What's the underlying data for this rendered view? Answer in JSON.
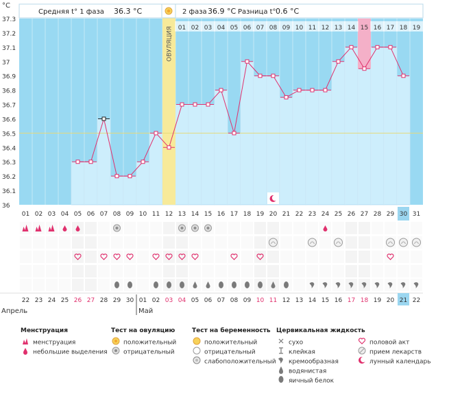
{
  "header": {
    "phase1_label": "Средняя t° 1 фаза",
    "phase1_value": "36.3 °C",
    "phase2_label": "2 фаза",
    "phase2_value": "36.9 °C",
    "diff_label": "Разница t°",
    "diff_value": "0.6 °C"
  },
  "ovulation_label": "ОВУЛЯЦИЯ",
  "colors": {
    "sky": "#99d9f2",
    "bar": "#cdeefc",
    "bar_edge": "#8cc8e8",
    "line": "#e0306d",
    "ovulation": "#f7ea9a",
    "ovulation_light": "#fbf4c8",
    "highlight": "#f4b0c8",
    "today": "#9bd6f0",
    "coverline": "#e6d97a"
  },
  "chart_data": {
    "type": "line",
    "ylabel": "°C",
    "ylim": [
      36,
      37.3
    ],
    "yticks": [
      "37.3",
      "37.2",
      "37.1",
      "37",
      "36.9",
      "36.8",
      "36.7",
      "36.6",
      "36.5",
      "36.4",
      "36.3",
      "36.2",
      "36.1",
      "36"
    ],
    "coverline": 36.5,
    "cycle_days": [
      "01",
      "02",
      "03",
      "04",
      "05",
      "06",
      "07",
      "08",
      "09",
      "10",
      "11",
      "12",
      "13",
      "14",
      "15",
      "16",
      "17",
      "18",
      "19"
    ],
    "cycle_day_offset": 11,
    "dates": [
      "01",
      "02",
      "03",
      "04",
      "05",
      "06",
      "07",
      "08",
      "09",
      "10",
      "11",
      "12",
      "13",
      "14",
      "15",
      "16",
      "17",
      "18",
      "19",
      "20",
      "21",
      "22",
      "23",
      "24",
      "25",
      "26",
      "27",
      "28",
      "29",
      "30",
      "31"
    ],
    "calendar_dates": [
      "22",
      "23",
      "24",
      "25",
      "26",
      "27",
      "28",
      "29",
      "30",
      "01",
      "02",
      "03",
      "04",
      "05",
      "06",
      "07",
      "08",
      "09",
      "10",
      "11",
      "12",
      "13",
      "14",
      "15",
      "16",
      "17",
      "18",
      "19",
      "20",
      "21",
      "22"
    ],
    "weekend_dates": [
      4,
      5,
      11,
      12,
      18,
      19,
      25,
      26
    ],
    "months": [
      {
        "name": "Апрель",
        "index": 0
      },
      {
        "name": "Май",
        "index": 9
      }
    ],
    "today_index": 29,
    "highlight_index": 26,
    "ovulation_index": 11,
    "moon_index": 19,
    "temperatures": [
      null,
      null,
      null,
      null,
      36.3,
      36.3,
      36.6,
      36.2,
      36.2,
      36.3,
      36.5,
      36.4,
      36.7,
      36.7,
      36.7,
      36.8,
      36.5,
      37.0,
      36.9,
      36.9,
      36.75,
      36.8,
      36.8,
      36.8,
      37.0,
      37.1,
      36.95,
      37.1,
      37.1,
      36.9,
      null
    ],
    "selected_point": 6,
    "rows": {
      "menstruation": [
        3,
        3,
        3,
        2,
        2,
        0,
        0,
        0,
        0,
        0,
        0,
        0,
        0,
        0,
        0,
        0,
        0,
        0,
        0,
        0,
        0,
        0,
        0,
        2,
        0,
        0,
        0,
        0,
        0,
        0,
        0
      ],
      "ovulation_test": [
        0,
        0,
        0,
        0,
        0,
        0,
        0,
        1,
        0,
        0,
        0,
        0,
        1,
        1,
        1,
        0,
        0,
        0,
        0,
        0,
        0,
        0,
        0,
        0,
        0,
        0,
        0,
        0,
        0,
        0,
        0
      ],
      "pregnancy_test": [
        0,
        0,
        0,
        0,
        0,
        0,
        0,
        0,
        0,
        0,
        0,
        0,
        0,
        0,
        0,
        0,
        0,
        0,
        0,
        1,
        0,
        0,
        1,
        0,
        1,
        0,
        0,
        0,
        1,
        1,
        1
      ],
      "intercourse": [
        0,
        0,
        0,
        0,
        1,
        0,
        1,
        1,
        1,
        0,
        1,
        1,
        1,
        1,
        0,
        0,
        1,
        0,
        1,
        0,
        0,
        0,
        0,
        0,
        0,
        0,
        0,
        0,
        1,
        0,
        0
      ],
      "fluid": [
        "",
        "",
        "",
        "",
        "",
        "",
        "",
        "egg",
        "egg",
        "",
        "egg",
        "egg",
        "egg",
        "water",
        "water",
        "egg",
        "egg",
        "egg",
        "egg",
        "water",
        "egg",
        "",
        "cream",
        "cream",
        "cream",
        "cream",
        "cream",
        "cream",
        "cream",
        "cream",
        "cream"
      ]
    }
  },
  "legend": {
    "menstruation": {
      "title": "Менструация",
      "items": [
        "менструация",
        "небольшие выделения"
      ]
    },
    "ovulation_test": {
      "title": "Тест на овуляцию",
      "items": [
        "положительный",
        "отрицательный"
      ]
    },
    "pregnancy_test": {
      "title": "Тест на беременность",
      "items": [
        "положительный",
        "отрицательный",
        "слабоположительный"
      ]
    },
    "fluid": {
      "title": "Цервикальная жидкость",
      "items": [
        "сухо",
        "клейкая",
        "кремообразная",
        "водянистая",
        "яичный белок"
      ]
    },
    "other": {
      "items": [
        "половой акт",
        "прием лекарств",
        "лунный календарь"
      ]
    }
  }
}
